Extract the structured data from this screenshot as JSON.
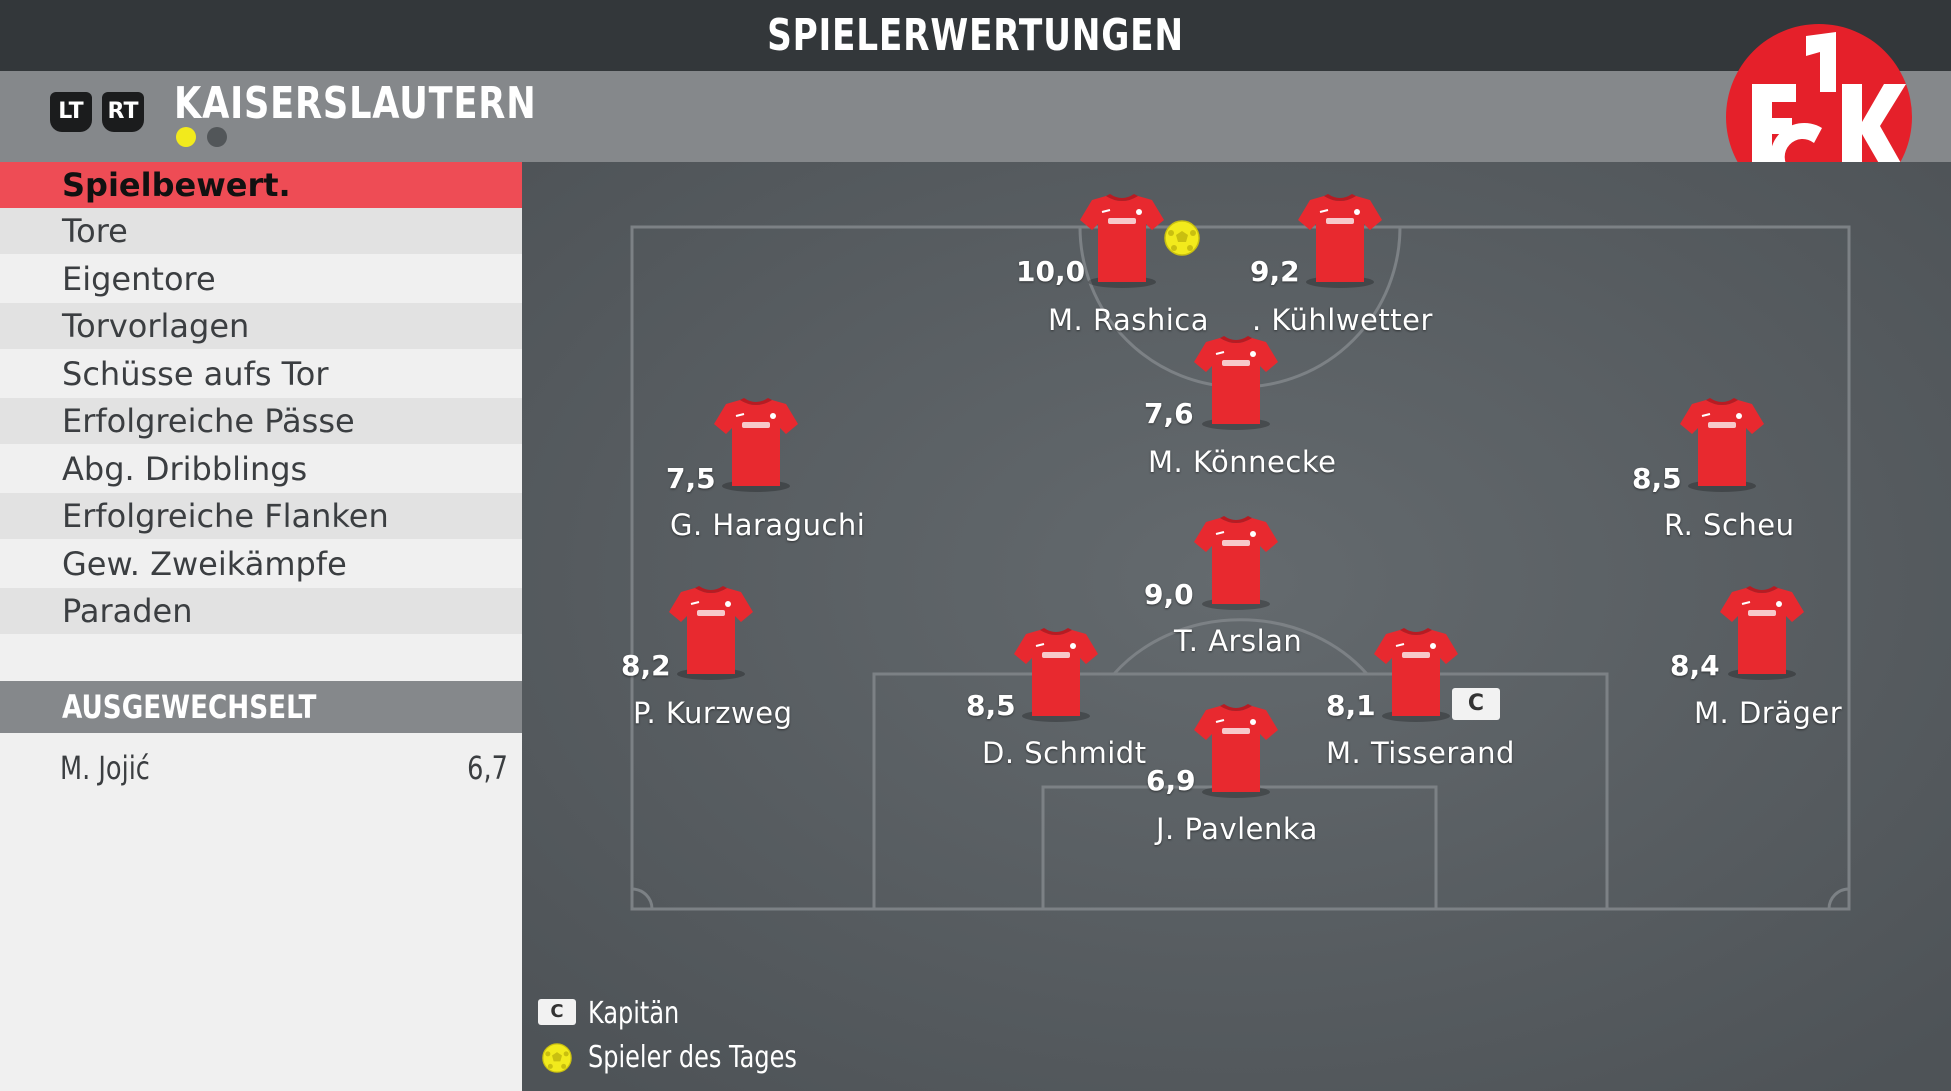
{
  "header": {
    "title": "SPIELERWERTUNGEN",
    "team": "KAISERSLAUTERN",
    "lt_label": "LT",
    "rt_label": "RT"
  },
  "logo": {
    "text": "1FCK",
    "color": "#e5202a"
  },
  "menu": {
    "items": [
      {
        "label": "Spielbewert.",
        "active": true
      },
      {
        "label": "Tore"
      },
      {
        "label": "Eigentore"
      },
      {
        "label": "Torvorlagen"
      },
      {
        "label": "Schüsse aufs Tor"
      },
      {
        "label": "Erfolgreiche Pässe"
      },
      {
        "label": "Abg. Dribblings"
      },
      {
        "label": "Erfolgreiche Flanken"
      },
      {
        "label": "Gew. Zweikämpfe"
      },
      {
        "label": "Paraden"
      }
    ]
  },
  "substitutes": {
    "heading": "AUSGEWECHSELT",
    "players": [
      {
        "name": "M. Jojić",
        "rating": "6,7"
      }
    ]
  },
  "players": {
    "p0": {
      "name": "M. Rashica",
      "rating": "10,0",
      "potm": true
    },
    "p1": {
      "name": ". Kühlwetter",
      "rating": "9,2"
    },
    "p2": {
      "name": "M. Könnecke",
      "rating": "7,6"
    },
    "p3": {
      "name": "G. Haraguchi",
      "rating": "7,5"
    },
    "p4": {
      "name": "R. Scheu",
      "rating": "8,5"
    },
    "p5": {
      "name": "T. Arslan",
      "rating": "9,0"
    },
    "p6": {
      "name": "P. Kurzweg",
      "rating": "8,2"
    },
    "p7": {
      "name": "D. Schmidt",
      "rating": "8,5"
    },
    "p8": {
      "name": "M. Tisserand",
      "rating": "8,1",
      "captain": true
    },
    "p9": {
      "name": "M. Dräger",
      "rating": "8,4"
    },
    "p10": {
      "name": "J. Pavlenka",
      "rating": "6,9"
    }
  },
  "legend": {
    "captain_badge": "C",
    "captain_label": "Kapitän",
    "potm_label": "Spieler des Tages"
  },
  "colors": {
    "active_menu": "#ee4c55",
    "shirt": "#e8292f",
    "potm": "#f2ea1c"
  }
}
